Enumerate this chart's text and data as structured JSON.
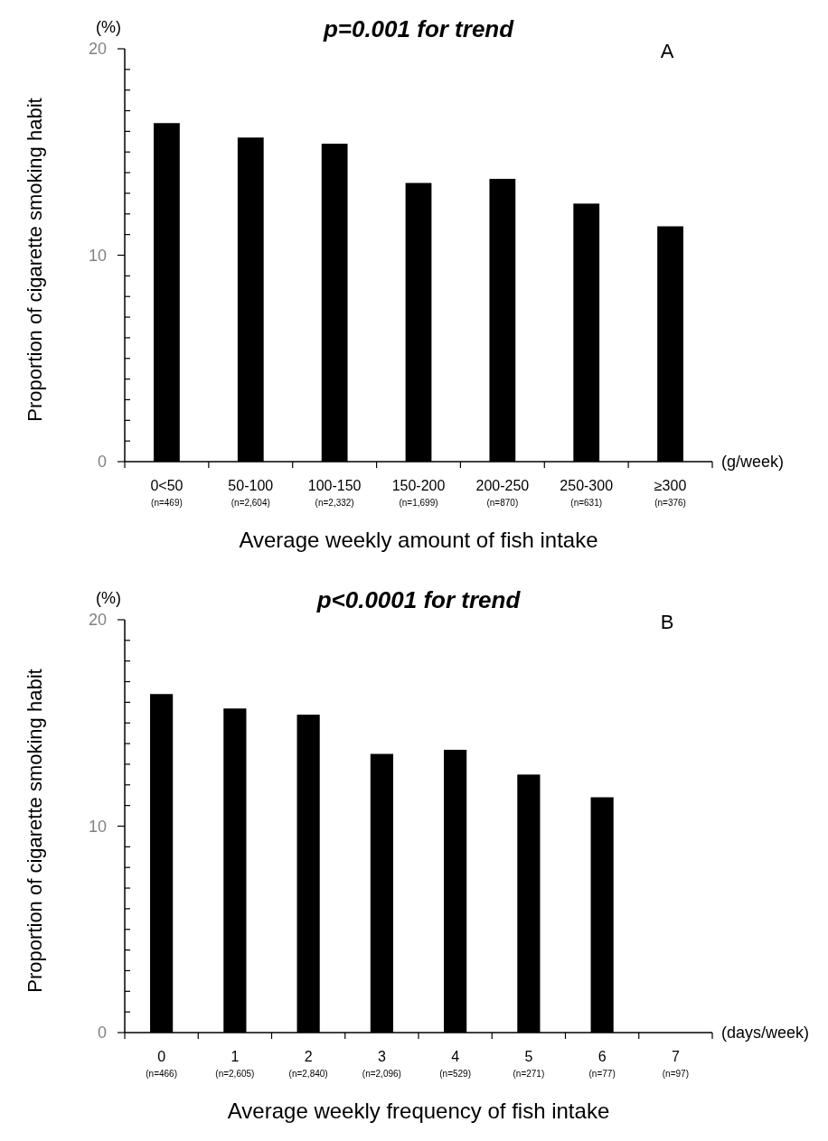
{
  "chart_data": [
    {
      "type": "bar",
      "title": "p=0.001 for trend",
      "xlabel": "Average weekly amount of fish intake",
      "ylabel": "Proportion of cigarette smoking habit",
      "categories": [
        "0<50\n(n=469)",
        "50-100\n(n=2,604)",
        "100-150\n(n=2,332)",
        "150-200\n(n=1,699)",
        "200-250\n(n=870)",
        "250-300\n(n=631)",
        "≥300\n(n=376)"
      ],
      "values": [
        16.4,
        15.7,
        15.4,
        13.5,
        13.7,
        12.5,
        11.4
      ],
      "color": "#000000",
      "ylim": [
        0,
        20
      ],
      "yticks": [
        0,
        {
          "value": 1,
          "label": null
        },
        {
          "value": 2,
          "label": null
        },
        {
          "value": 3,
          "label": null
        },
        {
          "value": 4,
          "label": null
        },
        {
          "value": 5,
          "label": null
        },
        {
          "value": 6,
          "label": null
        },
        {
          "value": 7,
          "label": null
        },
        {
          "value": 8,
          "label": null
        },
        {
          "value": 9,
          "label": null
        },
        10,
        {
          "value": 11,
          "label": null
        },
        {
          "value": 12,
          "label": null
        },
        {
          "value": 13,
          "label": null
        },
        {
          "value": 14,
          "label": null
        },
        {
          "value": 15,
          "label": null
        },
        {
          "value": 16,
          "label": null
        },
        {
          "value": 17,
          "label": null
        },
        {
          "value": 18,
          "label": null
        },
        {
          "value": 19,
          "label": null
        },
        20
      ],
      "annotations": [
        "(%)",
        "(g/week)",
        "A"
      ]
    },
    {
      "type": "bar",
      "title": "p<0.0001 for trend",
      "xlabel": "Average weekly frequency of fish intake",
      "ylabel": "Proportion of cigarette smoking habit",
      "categories": [
        "0\n(n=466)",
        "1\n(n=2,605)",
        "2\n(n=2,840)",
        "3\n(n=2,096)",
        "4\n(n=529)",
        "5\n(n=271)",
        "6\n(n=77)",
        "7\n(n=97)"
      ],
      "values": [
        16.4,
        15.7,
        15.4,
        13.5,
        13.7,
        12.5,
        11.4,
        null
      ],
      "color": "#000000",
      "ylim": [
        0,
        20
      ],
      "yticks": [
        0,
        {
          "value": 1,
          "label": null
        },
        {
          "value": 2,
          "label": null
        },
        {
          "value": 3,
          "label": null
        },
        {
          "value": 4,
          "label": null
        },
        {
          "value": 5,
          "label": null
        },
        {
          "value": 6,
          "label": null
        },
        {
          "value": 7,
          "label": null
        },
        {
          "value": 8,
          "label": null
        },
        {
          "value": 9,
          "label": null
        },
        10,
        {
          "value": 11,
          "label": null
        },
        {
          "value": 12,
          "label": null
        },
        {
          "value": 13,
          "label": null
        },
        {
          "value": 14,
          "label": null
        },
        {
          "value": 15,
          "label": null
        },
        {
          "value": 16,
          "label": null
        },
        {
          "value": 17,
          "label": null
        },
        {
          "value": 18,
          "label": null
        },
        {
          "value": 19,
          "label": null
        },
        20
      ],
      "annotations": [
        "(%)",
        "(days/week)",
        "B"
      ]
    }
  ]
}
